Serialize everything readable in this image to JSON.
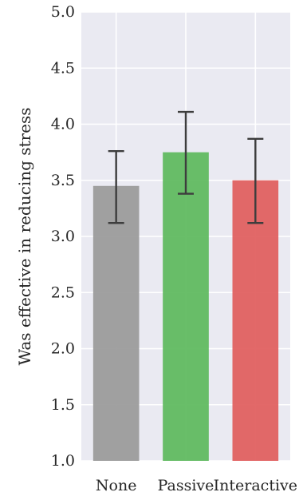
{
  "chart_data": {
    "type": "bar",
    "ylabel": "Was effective in reducing stress",
    "xlabel": "",
    "ylim": [
      1.0,
      5.0
    ],
    "yticks": [
      "1.0",
      "1.5",
      "2.0",
      "2.5",
      "3.0",
      "3.5",
      "4.0",
      "4.5",
      "5.0"
    ],
    "categories": [
      "None",
      "Passive",
      "Interactive"
    ],
    "values": [
      3.45,
      3.75,
      3.5
    ],
    "error_low": [
      3.12,
      3.38,
      3.12
    ],
    "error_high": [
      3.76,
      4.11,
      3.87
    ],
    "colors": [
      "#999999",
      "#5cb85c",
      "#e05c5c"
    ],
    "grid": true,
    "background": "#eaeaf2"
  }
}
